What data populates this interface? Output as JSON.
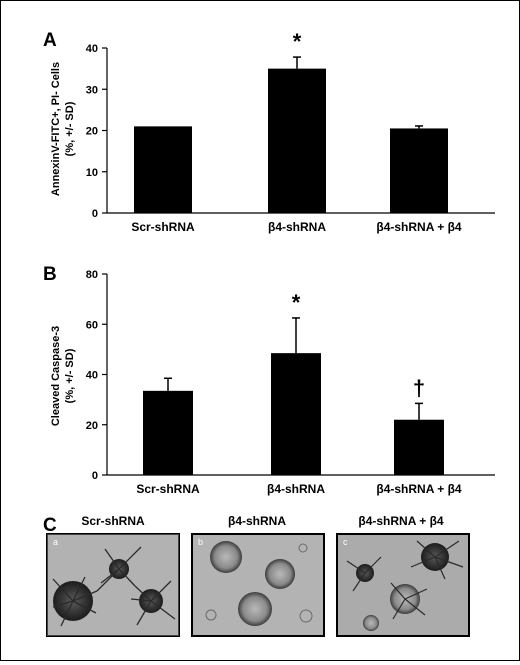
{
  "panels": {
    "a": "A",
    "b": "B",
    "c": "C"
  },
  "chart_data": [
    {
      "type": "bar",
      "categories": [
        "Scr-shRNA",
        "β4-shRNA",
        "β4-shRNA + β4"
      ],
      "values": [
        21,
        35,
        20.5
      ],
      "error": [
        0,
        2.8,
        0.6
      ],
      "annotations": [
        "",
        "*",
        ""
      ],
      "ylabel": [
        "AnnexinV-FITC+, PI- Cells",
        "(%, +/- SD)"
      ],
      "ylim": [
        0,
        40
      ],
      "yticks": [
        0,
        10,
        20,
        30,
        40
      ]
    },
    {
      "type": "bar",
      "categories": [
        "Scr-shRNA",
        "β4-shRNA",
        "β4-shRNA + β4"
      ],
      "values": [
        33.5,
        48.5,
        22
      ],
      "error": [
        5,
        14,
        6.5
      ],
      "annotations": [
        "",
        "*",
        "†"
      ],
      "ylabel": [
        "Cleaved Caspase-3",
        "(%, +/- SD)"
      ],
      "ylim": [
        0,
        80
      ],
      "yticks": [
        0,
        20,
        40,
        60,
        80
      ]
    }
  ],
  "images": [
    {
      "title": "Scr-shRNA",
      "letter": "a"
    },
    {
      "title": "β4-shRNA",
      "letter": "b"
    },
    {
      "title": "β4-shRNA + β4",
      "letter": "c"
    }
  ]
}
